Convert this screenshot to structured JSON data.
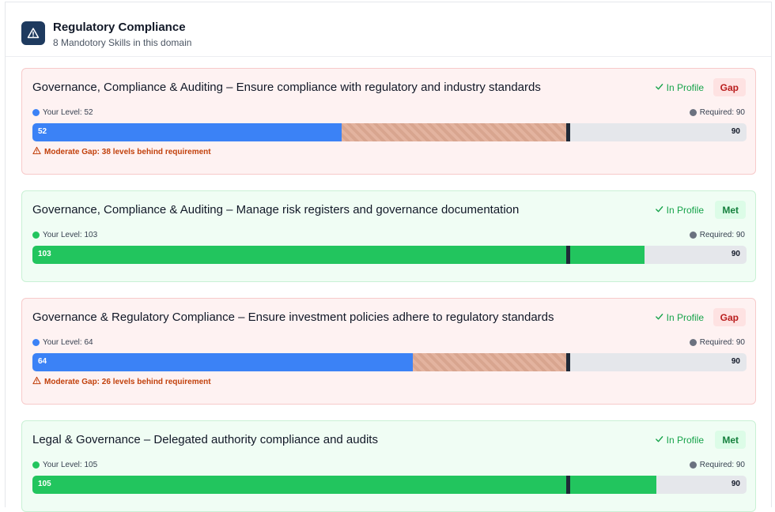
{
  "header": {
    "title": "Regulatory Compliance",
    "subtitle": "8 Mandotory Skills in this domain",
    "icon": "warning-triangle-icon"
  },
  "colors": {
    "gap_bg": "#fef2f2",
    "met_bg": "#f0fdf4",
    "blue": "#3b82f6",
    "green": "#22c55e",
    "gap_text": "#c2410c"
  },
  "skills": [
    {
      "title": "Governance, Compliance & Auditing – Ensure compliance with regulatory and industry standards",
      "in_profile": "In Profile",
      "status": "Gap",
      "your_level_label": "Your Level: 52",
      "required_label": "Required: 90",
      "level": 52,
      "required": 90,
      "bar_value": "52",
      "bar_required": "90",
      "gap_message": "Moderate Gap: 38 levels behind requirement"
    },
    {
      "title": "Governance, Compliance & Auditing – Manage risk registers and governance documentation",
      "in_profile": "In Profile",
      "status": "Met",
      "your_level_label": "Your Level: 103",
      "required_label": "Required: 90",
      "level": 103,
      "required": 90,
      "bar_value": "103",
      "bar_required": "90"
    },
    {
      "title": "Governance & Regulatory Compliance – Ensure investment policies adhere to regulatory standards",
      "in_profile": "In Profile",
      "status": "Gap",
      "your_level_label": "Your Level: 64",
      "required_label": "Required: 90",
      "level": 64,
      "required": 90,
      "bar_value": "64",
      "bar_required": "90",
      "gap_message": "Moderate Gap: 26 levels behind requirement"
    },
    {
      "title": "Legal & Governance – Delegated authority compliance and audits",
      "in_profile": "In Profile",
      "status": "Met",
      "your_level_label": "Your Level: 105",
      "required_label": "Required: 90",
      "level": 105,
      "required": 90,
      "bar_value": "105",
      "bar_required": "90"
    }
  ]
}
